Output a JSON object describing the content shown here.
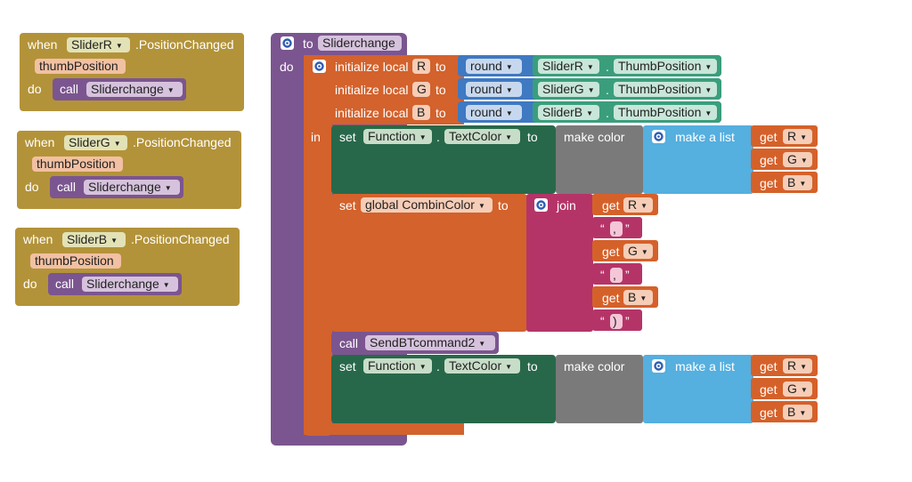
{
  "colors": {
    "event": "#b39339",
    "procedure": "#7b558f",
    "local_var": "#d3622c",
    "setter": "#28684a",
    "math_round": "#3f79c2",
    "component": "#3a9e7c",
    "color": "#7a7a7a",
    "list": "#55afdf",
    "getter": "#d5612a",
    "text_join": "#b53468"
  },
  "events": [
    {
      "when": "when",
      "component": "SliderR",
      "event": ".PositionChanged",
      "param": "thumbPosition",
      "do": "do",
      "call": "call",
      "proc": "Sliderchange"
    },
    {
      "when": "when",
      "component": "SliderG",
      "event": ".PositionChanged",
      "param": "thumbPosition",
      "do": "do",
      "call": "call",
      "proc": "Sliderchange"
    },
    {
      "when": "when",
      "component": "SliderB",
      "event": ".PositionChanged",
      "param": "thumbPosition",
      "do": "do",
      "call": "call",
      "proc": "Sliderchange"
    }
  ],
  "procedure": {
    "to": "to",
    "name": "Sliderchange",
    "do": "do",
    "in": "in",
    "init_label": "initialize local",
    "to_label": "to",
    "locals": [
      {
        "name": "R",
        "op": "round",
        "component": "SliderR",
        "dot": ".",
        "property": "ThumbPosition"
      },
      {
        "name": "G",
        "op": "round",
        "component": "SliderG",
        "dot": ".",
        "property": "ThumbPosition"
      },
      {
        "name": "B",
        "op": "round",
        "component": "SliderB",
        "dot": ".",
        "property": "ThumbPosition"
      }
    ],
    "set1": {
      "set": "set",
      "component": "Function",
      "dot": ".",
      "property": "TextColor",
      "to": "to",
      "make_color": "make color",
      "make_list": "make a list",
      "gets": [
        "R",
        "G",
        "B"
      ],
      "get_label": "get"
    },
    "set_global": {
      "set": "set",
      "var": "global CombinColor",
      "to": "to",
      "join": "join",
      "get_label": "get",
      "items": [
        {
          "kind": "get",
          "value": "R"
        },
        {
          "kind": "text",
          "value": ","
        },
        {
          "kind": "get",
          "value": "G"
        },
        {
          "kind": "text",
          "value": ","
        },
        {
          "kind": "get",
          "value": "B"
        },
        {
          "kind": "text",
          "value": ")"
        }
      ],
      "quote_open": "“",
      "quote_close": "”"
    },
    "call_send": {
      "call": "call",
      "proc": "SendBTcommand2"
    },
    "set2": {
      "set": "set",
      "component": "Function",
      "dot": ".",
      "property": "TextColor",
      "to": "to",
      "make_color": "make color",
      "make_list": "make a list",
      "gets": [
        "R",
        "G",
        "B"
      ],
      "get_label": "get"
    }
  }
}
